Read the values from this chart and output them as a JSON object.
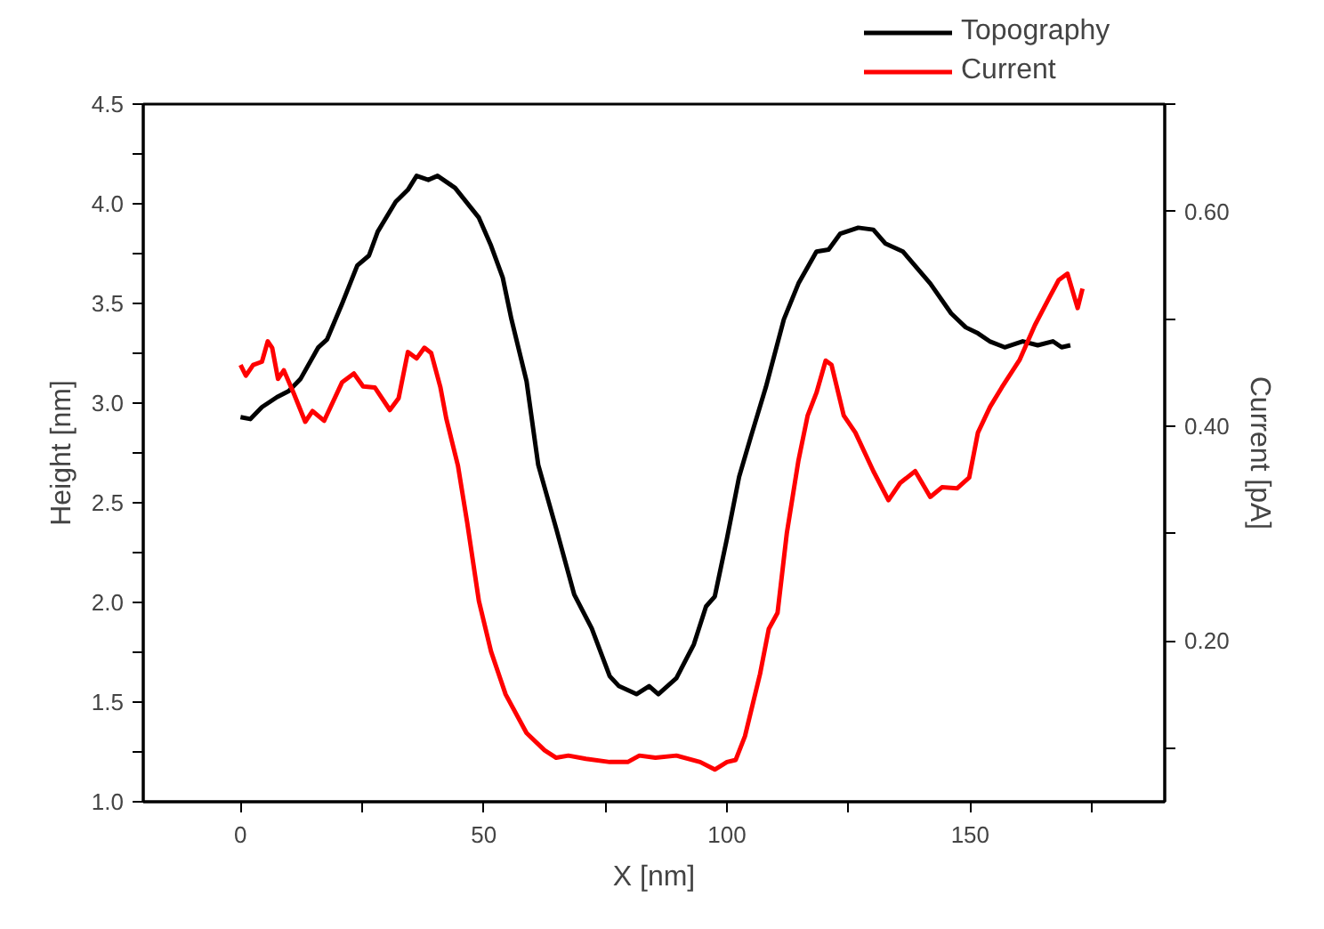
{
  "chart_data": {
    "type": "line",
    "xlabel": "X [nm]",
    "ylabel": "Height [nm]",
    "y2label": "Current [pA]",
    "xlim": [
      -20,
      190
    ],
    "ylim": [
      1.0,
      4.5
    ],
    "y2lim": [
      0.05,
      0.7
    ],
    "xticks": [
      0,
      {
        "value": 25,
        "label": null
      },
      50,
      {
        "value": 75,
        "label": null
      },
      100,
      {
        "value": 125,
        "label": null
      },
      150,
      {
        "value": 175,
        "label": null
      }
    ],
    "yticks": [
      {
        "value": 1.0,
        "label": "1.0"
      },
      {
        "value": 1.25,
        "label": null
      },
      {
        "value": 1.5,
        "label": "1.5"
      },
      {
        "value": 1.75,
        "label": null
      },
      {
        "value": 2.0,
        "label": "2.0"
      },
      {
        "value": 2.25,
        "label": null
      },
      {
        "value": 2.5,
        "label": "2.5"
      },
      {
        "value": 2.75,
        "label": null
      },
      {
        "value": 3.0,
        "label": "3.0"
      },
      {
        "value": 3.25,
        "label": null
      },
      {
        "value": 3.5,
        "label": "3.5"
      },
      {
        "value": 3.75,
        "label": null
      },
      {
        "value": 4.0,
        "label": "4.0"
      },
      {
        "value": 4.25,
        "label": null
      },
      {
        "value": 4.5,
        "label": "4.5"
      }
    ],
    "y2ticks": [
      {
        "value": 0.1,
        "label": null
      },
      {
        "value": 0.2,
        "label": "0.20"
      },
      {
        "value": 0.3,
        "label": null
      },
      {
        "value": 0.4,
        "label": "0.40"
      },
      {
        "value": 0.5,
        "label": null
      },
      {
        "value": 0.6,
        "label": "0.60"
      },
      {
        "value": 0.7,
        "label": null
      }
    ],
    "grid": false,
    "legend": "top",
    "marker": "none",
    "line_style": "solid",
    "series": [
      {
        "name": "Topography",
        "color": "#000000",
        "x": [
          0,
          2,
          4.4,
          7.5,
          9.9,
          12.3,
          16,
          17.8,
          20.9,
          24,
          26.4,
          28.2,
          31.9,
          34.4,
          36.2,
          38.6,
          40.5,
          44.1,
          49,
          51.5,
          53.9,
          55.7,
          58.8,
          61.2,
          64.9,
          68.6,
          72.2,
          75.9,
          77.8,
          81.4,
          84,
          85.9,
          89.6,
          93.2,
          95.7,
          97.5,
          100,
          102.5,
          104.9,
          108,
          111.7,
          114.7,
          118.4,
          120.9,
          123.3,
          127,
          130.1,
          132.6,
          136.2,
          141.8,
          146.1,
          149.1,
          151.6,
          154,
          157.1,
          160.8,
          163.9,
          167,
          168.8,
          170.6
        ],
        "values": [
          2.93,
          2.92,
          2.98,
          3.03,
          3.06,
          3.12,
          3.28,
          3.32,
          3.5,
          3.69,
          3.74,
          3.86,
          4.01,
          4.07,
          4.14,
          4.12,
          4.14,
          4.08,
          3.93,
          3.79,
          3.63,
          3.42,
          3.11,
          2.69,
          2.37,
          2.04,
          1.87,
          1.63,
          1.58,
          1.54,
          1.58,
          1.54,
          1.62,
          1.79,
          1.98,
          2.03,
          2.32,
          2.63,
          2.83,
          3.08,
          3.42,
          3.6,
          3.76,
          3.77,
          3.85,
          3.88,
          3.87,
          3.8,
          3.76,
          3.6,
          3.45,
          3.38,
          3.35,
          3.31,
          3.28,
          3.31,
          3.29,
          3.31,
          3.28,
          3.29
        ]
      },
      {
        "name": "Current",
        "color": "#ff0000",
        "axis": "y2",
        "x": [
          0,
          1.1,
          2.6,
          4.4,
          5.6,
          6.5,
          7.7,
          8.9,
          10.9,
          13.3,
          14.8,
          17.2,
          20.9,
          23.3,
          25.2,
          27.6,
          30.7,
          32.5,
          34.4,
          36.2,
          37.8,
          39.2,
          41.1,
          42.3,
          44.7,
          46.6,
          49,
          51.5,
          54.5,
          58.8,
          62.5,
          64.9,
          67.4,
          71,
          75.9,
          79.6,
          82,
          85.3,
          89.6,
          94.5,
          97.5,
          100,
          101.8,
          103.7,
          106.8,
          108.6,
          110.4,
          112.3,
          114.7,
          116.6,
          118.4,
          120.3,
          121.5,
          124,
          126.4,
          130.1,
          133.2,
          135.6,
          138.7,
          141.8,
          144.2,
          147.3,
          149.8,
          151.6,
          154.1,
          156.5,
          160.2,
          163.3,
          166.3,
          168.2,
          170,
          172.1,
          173.1
        ],
        "values": [
          0.457,
          0.447,
          0.457,
          0.46,
          0.479,
          0.473,
          0.444,
          0.452,
          0.431,
          0.404,
          0.414,
          0.405,
          0.441,
          0.449,
          0.437,
          0.436,
          0.415,
          0.426,
          0.469,
          0.463,
          0.473,
          0.468,
          0.436,
          0.407,
          0.363,
          0.31,
          0.237,
          0.19,
          0.15,
          0.114,
          0.098,
          0.091,
          0.093,
          0.09,
          0.087,
          0.087,
          0.093,
          0.091,
          0.093,
          0.087,
          0.08,
          0.087,
          0.089,
          0.111,
          0.169,
          0.211,
          0.226,
          0.3,
          0.368,
          0.41,
          0.431,
          0.461,
          0.457,
          0.41,
          0.394,
          0.358,
          0.331,
          0.347,
          0.358,
          0.334,
          0.343,
          0.342,
          0.352,
          0.394,
          0.418,
          0.436,
          0.462,
          0.494,
          0.52,
          0.536,
          0.542,
          0.51,
          0.528
        ]
      }
    ]
  }
}
